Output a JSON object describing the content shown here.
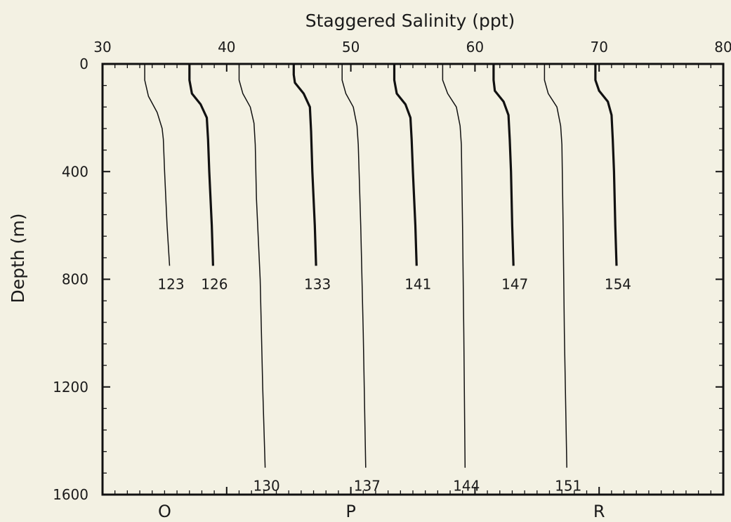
{
  "chart_data": {
    "type": "line",
    "title": "",
    "xlabel": "Staggered Salinity (ppt)",
    "ylabel": "Depth (m)",
    "xlim": [
      30,
      80
    ],
    "ylim": [
      0,
      1600
    ],
    "x_ticks": [
      30,
      40,
      50,
      60,
      70,
      80
    ],
    "y_ticks": [
      0,
      400,
      800,
      1200,
      1600
    ],
    "x_axis_position": "top",
    "y_inverted": true,
    "grid": false,
    "bottom_labels": [
      {
        "text": "O",
        "x": 35
      },
      {
        "text": "P",
        "x": 50
      },
      {
        "text": "R",
        "x": 70
      }
    ],
    "series": [
      {
        "name": "123",
        "bold": false,
        "points": [
          [
            33.4,
            0
          ],
          [
            33.4,
            60
          ],
          [
            33.7,
            120
          ],
          [
            34.4,
            180
          ],
          [
            34.8,
            240
          ],
          [
            34.9,
            280
          ],
          [
            35.0,
            400
          ],
          [
            35.2,
            600
          ],
          [
            35.4,
            750
          ]
        ]
      },
      {
        "name": "126",
        "bold": true,
        "points": [
          [
            37.0,
            0
          ],
          [
            37.0,
            60
          ],
          [
            37.2,
            110
          ],
          [
            37.9,
            150
          ],
          [
            38.4,
            200
          ],
          [
            38.5,
            280
          ],
          [
            38.6,
            400
          ],
          [
            38.8,
            600
          ],
          [
            38.9,
            750
          ]
        ]
      },
      {
        "name": "130",
        "bold": false,
        "points": [
          [
            41.0,
            0
          ],
          [
            41.0,
            60
          ],
          [
            41.3,
            110
          ],
          [
            41.9,
            160
          ],
          [
            42.2,
            220
          ],
          [
            42.3,
            300
          ],
          [
            42.4,
            500
          ],
          [
            42.7,
            800
          ],
          [
            42.9,
            1200
          ],
          [
            43.1,
            1500
          ]
        ]
      },
      {
        "name": "133",
        "bold": true,
        "points": [
          [
            45.4,
            0
          ],
          [
            45.4,
            40
          ],
          [
            45.5,
            70
          ],
          [
            46.2,
            110
          ],
          [
            46.7,
            160
          ],
          [
            46.8,
            250
          ],
          [
            46.9,
            400
          ],
          [
            47.1,
            600
          ],
          [
            47.2,
            750
          ]
        ]
      },
      {
        "name": "137",
        "bold": false,
        "points": [
          [
            49.3,
            0
          ],
          [
            49.3,
            60
          ],
          [
            49.6,
            110
          ],
          [
            50.2,
            160
          ],
          [
            50.5,
            230
          ],
          [
            50.6,
            300
          ],
          [
            50.8,
            600
          ],
          [
            51.0,
            1000
          ],
          [
            51.2,
            1500
          ]
        ]
      },
      {
        "name": "141",
        "bold": true,
        "points": [
          [
            53.5,
            0
          ],
          [
            53.5,
            60
          ],
          [
            53.7,
            110
          ],
          [
            54.4,
            150
          ],
          [
            54.8,
            200
          ],
          [
            54.9,
            280
          ],
          [
            55.0,
            400
          ],
          [
            55.2,
            600
          ],
          [
            55.3,
            750
          ]
        ]
      },
      {
        "name": "144",
        "bold": false,
        "points": [
          [
            57.4,
            0
          ],
          [
            57.4,
            60
          ],
          [
            57.8,
            110
          ],
          [
            58.5,
            160
          ],
          [
            58.8,
            230
          ],
          [
            58.9,
            300
          ],
          [
            59.0,
            600
          ],
          [
            59.1,
            1000
          ],
          [
            59.2,
            1500
          ]
        ]
      },
      {
        "name": "147",
        "bold": true,
        "points": [
          [
            61.5,
            0
          ],
          [
            61.5,
            60
          ],
          [
            61.6,
            100
          ],
          [
            62.3,
            140
          ],
          [
            62.7,
            190
          ],
          [
            62.8,
            280
          ],
          [
            62.9,
            400
          ],
          [
            63.0,
            600
          ],
          [
            63.1,
            750
          ]
        ]
      },
      {
        "name": "151",
        "bold": false,
        "points": [
          [
            65.6,
            0
          ],
          [
            65.6,
            60
          ],
          [
            65.9,
            110
          ],
          [
            66.6,
            160
          ],
          [
            66.9,
            230
          ],
          [
            67.0,
            300
          ],
          [
            67.1,
            600
          ],
          [
            67.2,
            1000
          ],
          [
            67.4,
            1500
          ]
        ]
      },
      {
        "name": "154",
        "bold": true,
        "points": [
          [
            69.7,
            0
          ],
          [
            69.7,
            60
          ],
          [
            70.0,
            100
          ],
          [
            70.7,
            140
          ],
          [
            71.0,
            190
          ],
          [
            71.1,
            280
          ],
          [
            71.2,
            400
          ],
          [
            71.3,
            600
          ],
          [
            71.4,
            750
          ]
        ]
      }
    ]
  }
}
